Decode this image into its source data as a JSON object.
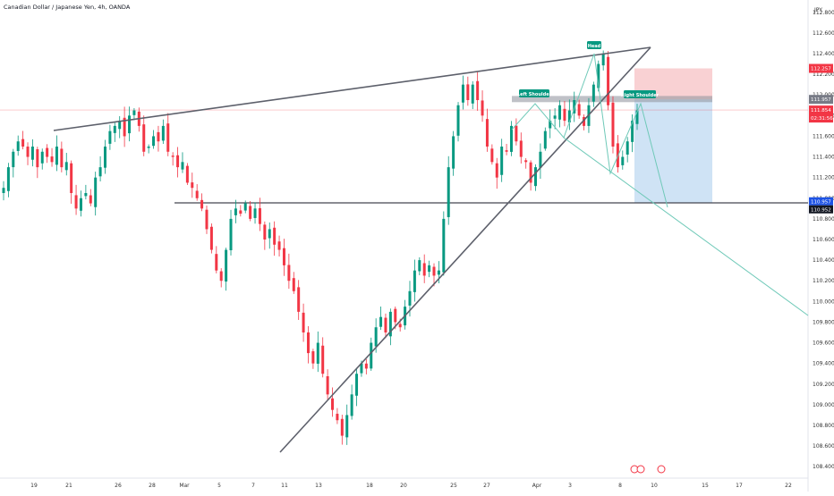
{
  "header": {
    "title": "Canadian Dollar / Japanese Yen, 4h, OANDA"
  },
  "axis": {
    "currency": "JPY",
    "y_ticks": [
      "112.800",
      "112.600",
      "112.400",
      "112.200",
      "112.000",
      "111.800",
      "111.600",
      "111.400",
      "111.200",
      "111.000",
      "110.800",
      "110.600",
      "110.400",
      "110.200",
      "110.000",
      "109.800",
      "109.600",
      "109.400",
      "109.200",
      "109.000",
      "108.800",
      "108.600",
      "108.400"
    ],
    "x_ticks": [
      "19",
      "21",
      "26",
      "28",
      "Mar",
      "5",
      "7",
      "11",
      "13",
      "18",
      "20",
      "25",
      "27",
      "Apr",
      "3",
      "8",
      "10",
      "15",
      "17",
      "22"
    ]
  },
  "labels": {
    "head": "Head",
    "left_shoulder": "Left Shoulder",
    "right_shoulder": "Right Shoulder"
  },
  "price_badges": {
    "stop": "112.257",
    "entry": "111.957",
    "current": "111.854",
    "countdown": "02:31:56",
    "target": "110.957",
    "neckline": "110.952"
  },
  "colors": {
    "up": "#089981",
    "down": "#f23645",
    "stop_zone": "#f7c5c8",
    "target_zone": "#bfd9f2",
    "trendline": "#5d606b",
    "projection": "#6fc9b8",
    "label_bg": "#089981"
  },
  "chart_data": {
    "type": "candlestick",
    "title": "Canadian Dollar / Japanese Yen, 4h, OANDA",
    "ylim": [
      108.35,
      112.85
    ],
    "y_unit": "JPY",
    "close_path": [
      111.1,
      111.3,
      111.45,
      111.55,
      111.5,
      111.4,
      111.5,
      111.3,
      111.45,
      111.4,
      111.35,
      111.5,
      111.3,
      111.35,
      111.05,
      110.9,
      111.0,
      111.05,
      110.95,
      111.2,
      111.3,
      111.5,
      111.65,
      111.7,
      111.75,
      111.6,
      111.8,
      111.85,
      111.7,
      111.45,
      111.5,
      111.6,
      111.55,
      111.7,
      111.45,
      111.4,
      111.3,
      111.35,
      111.15,
      111.1,
      111.0,
      110.9,
      110.7,
      110.5,
      110.3,
      110.2,
      110.5,
      110.8,
      110.9,
      110.85,
      110.95,
      110.8,
      110.9,
      110.75,
      110.6,
      110.7,
      110.55,
      110.5,
      110.35,
      110.2,
      110.1,
      109.9,
      109.7,
      109.5,
      109.4,
      109.6,
      109.3,
      109.1,
      108.95,
      108.85,
      108.7,
      108.9,
      109.1,
      109.3,
      109.4,
      109.35,
      109.6,
      109.75,
      109.85,
      109.7,
      109.9,
      109.8,
      109.75,
      109.95,
      110.1,
      110.3,
      110.4,
      110.25,
      110.35,
      110.25,
      110.3,
      110.8,
      111.3,
      111.6,
      111.9,
      112.1,
      111.95,
      112.1,
      111.95,
      111.8,
      111.5,
      111.35,
      111.2,
      111.5,
      111.45,
      111.7,
      111.55,
      111.4,
      111.35,
      111.15,
      111.3,
      111.45,
      111.65,
      111.75,
      111.8,
      111.9,
      111.75,
      111.85,
      111.95,
      111.8,
      111.7,
      111.9,
      112.1,
      112.3,
      112.4,
      111.9,
      111.5,
      111.3,
      111.4,
      111.55,
      111.75,
      111.85
    ],
    "x_start": "Feb 16",
    "x_end": "Apr 9"
  }
}
